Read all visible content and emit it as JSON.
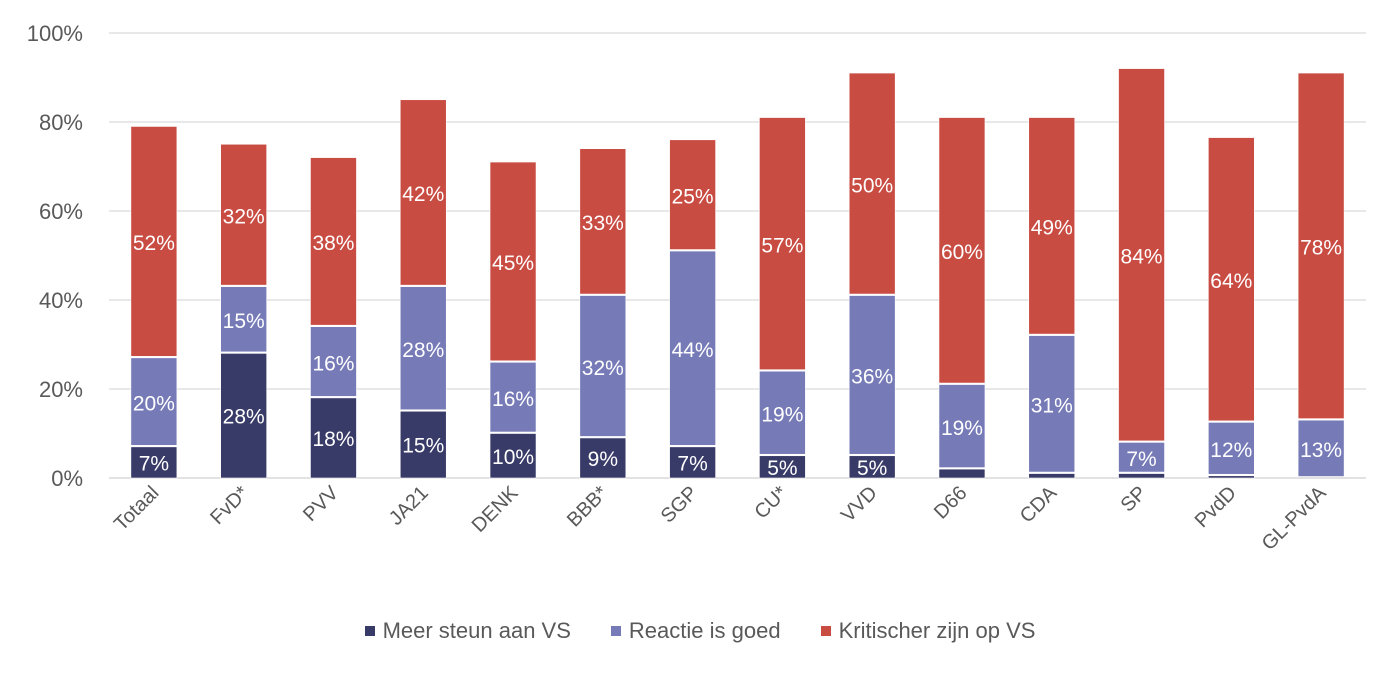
{
  "chart_data": {
    "type": "bar",
    "stacked": true,
    "title": "",
    "xlabel": "",
    "ylabel": "",
    "ylim": [
      0,
      100
    ],
    "yticks": [
      "0%",
      "20%",
      "40%",
      "60%",
      "80%",
      "100%"
    ],
    "ytick_values": [
      0,
      20,
      40,
      60,
      80,
      100
    ],
    "grid": true,
    "legend_position": "bottom",
    "categories": [
      "Totaal",
      "FvD*",
      "PVV",
      "JA21",
      "DENK",
      "BBB*",
      "SGP",
      "CU*",
      "VVD",
      "D66",
      "CDA",
      "SP",
      "PvdD",
      "GL-PvdA"
    ],
    "series": [
      {
        "name": "Meer steun aan VS",
        "color": "#383a68",
        "values": [
          7,
          28,
          18,
          15,
          10,
          9,
          7,
          5,
          5,
          2,
          1,
          1,
          0.5,
          0
        ],
        "labels": [
          "7%",
          "28%",
          "18%",
          "15%",
          "10%",
          "9%",
          "7%",
          "5%",
          "5%",
          "",
          "",
          "",
          "",
          ""
        ]
      },
      {
        "name": "Reactie is goed",
        "color": "#767bb7",
        "values": [
          20,
          15,
          16,
          28,
          16,
          32,
          44,
          19,
          36,
          19,
          31,
          7,
          12,
          13
        ],
        "labels": [
          "20%",
          "15%",
          "16%",
          "28%",
          "16%",
          "32%",
          "44%",
          "19%",
          "36%",
          "19%",
          "31%",
          "7%",
          "12%",
          "13%"
        ]
      },
      {
        "name": "Kritischer zijn op VS",
        "color": "#c94c43",
        "values": [
          52,
          32,
          38,
          42,
          45,
          33,
          25,
          57,
          50,
          60,
          49,
          84,
          64,
          78
        ],
        "labels": [
          "52%",
          "32%",
          "38%",
          "42%",
          "45%",
          "33%",
          "25%",
          "57%",
          "50%",
          "60%",
          "49%",
          "84%",
          "64%",
          "78%"
        ]
      }
    ]
  },
  "legend": {
    "items": [
      {
        "label": "Meer steun aan VS",
        "color": "#383a68"
      },
      {
        "label": "Reactie is goed",
        "color": "#767bb7"
      },
      {
        "label": "Kritischer zijn op VS",
        "color": "#c94c43"
      }
    ]
  }
}
